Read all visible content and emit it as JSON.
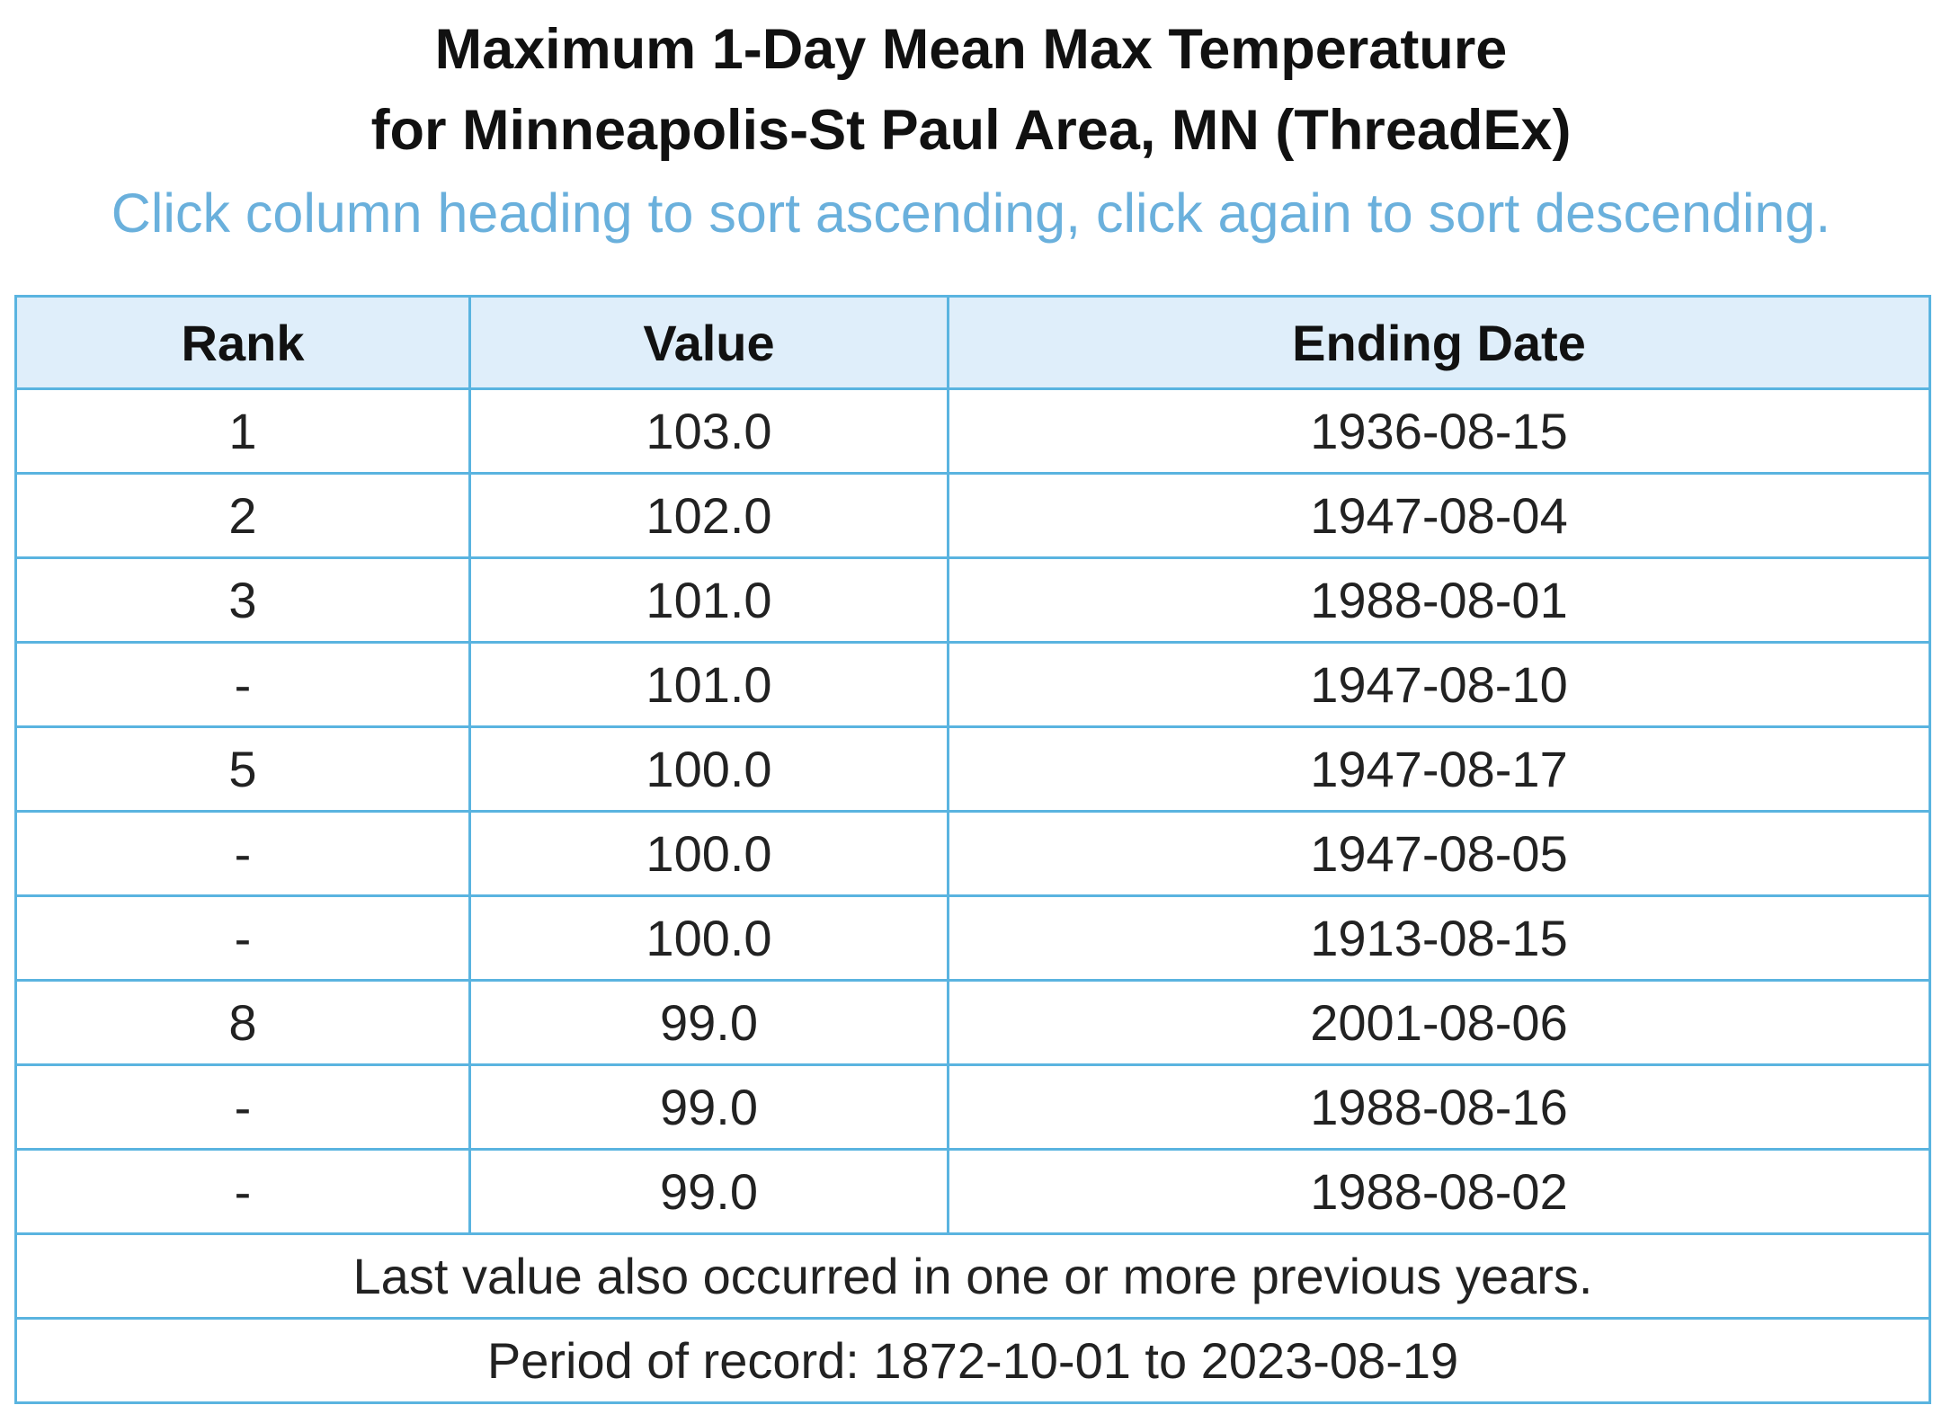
{
  "header": {
    "title": [
      "Maximum 1-Day Mean Max Temperature",
      "for Minneapolis-St Paul Area, MN (ThreadEx)"
    ],
    "instruction": "Click column heading to sort ascending, click again to sort descending."
  },
  "table": {
    "columns": [
      "Rank",
      "Value",
      "Ending Date"
    ],
    "rows": [
      [
        "1",
        "103.0",
        "1936-08-15"
      ],
      [
        "2",
        "102.0",
        "1947-08-04"
      ],
      [
        "3",
        "101.0",
        "1988-08-01"
      ],
      [
        "-",
        "101.0",
        "1947-08-10"
      ],
      [
        "5",
        "100.0",
        "1947-08-17"
      ],
      [
        "-",
        "100.0",
        "1947-08-05"
      ],
      [
        "-",
        "100.0",
        "1913-08-15"
      ],
      [
        "8",
        "99.0",
        "2001-08-06"
      ],
      [
        "-",
        "99.0",
        "1988-08-16"
      ],
      [
        "-",
        "99.0",
        "1988-08-02"
      ]
    ],
    "footer": [
      "Last value also occurred in one or more previous years.",
      "Period of record: 1872-10-01 to 2023-08-19"
    ]
  }
}
